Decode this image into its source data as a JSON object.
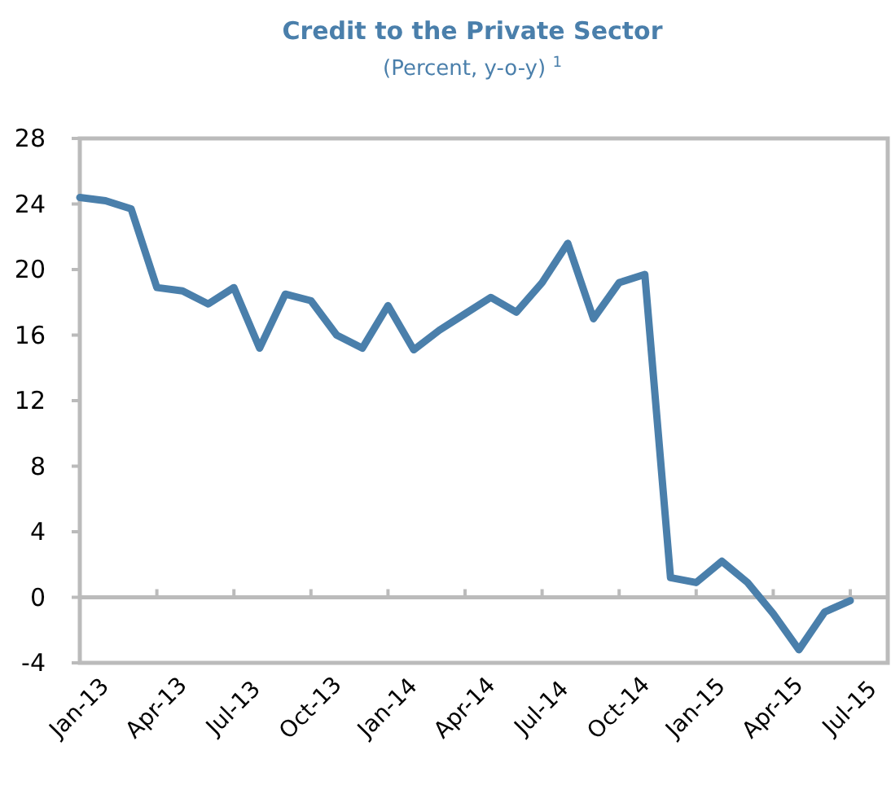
{
  "chart_data": {
    "type": "line",
    "title": "Credit to the Private Sector",
    "subtitle": "(Percent, y-o-y) $^{1}$",
    "categories": [
      "Jan-13",
      null,
      null,
      "Apr-13",
      null,
      null,
      "Jul-13",
      null,
      null,
      "Oct-13",
      null,
      null,
      "Jan-14",
      null,
      null,
      "Apr-14",
      null,
      null,
      "Jul-14",
      null,
      null,
      "Oct-14",
      null,
      null,
      "Jan-15",
      null,
      null,
      "Apr-15",
      null,
      null,
      "Jul-15"
    ],
    "series": [
      {
        "color": "#4a7fab",
        "values": [
          24.4,
          24.2,
          23.7,
          18.9,
          18.7,
          17.9,
          18.9,
          15.2,
          18.5,
          18.1,
          16.0,
          15.2,
          17.8,
          15.1,
          16.3,
          17.3,
          18.3,
          17.4,
          19.2,
          21.6,
          17.0,
          19.2,
          19.7,
          1.2,
          0.9,
          2.2,
          0.9,
          -1.0,
          -3.2,
          -0.9,
          -0.2
        ]
      }
    ],
    "ylim": [
      -4,
      28
    ],
    "yticks": [
      -4,
      0,
      4,
      8,
      12,
      16,
      20,
      24,
      28
    ],
    "marker": "none",
    "line_style": "solid"
  }
}
